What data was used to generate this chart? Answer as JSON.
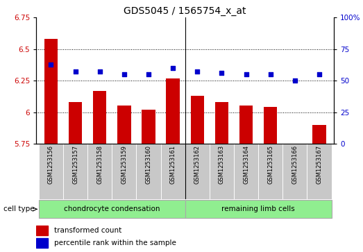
{
  "title": "GDS5045 / 1565754_x_at",
  "samples": [
    "GSM1253156",
    "GSM1253157",
    "GSM1253158",
    "GSM1253159",
    "GSM1253160",
    "GSM1253161",
    "GSM1253162",
    "GSM1253163",
    "GSM1253164",
    "GSM1253165",
    "GSM1253166",
    "GSM1253167"
  ],
  "bar_values": [
    6.58,
    6.08,
    6.17,
    6.05,
    6.02,
    6.27,
    6.13,
    6.08,
    6.05,
    6.04,
    5.75,
    5.9
  ],
  "percentile_values": [
    63,
    57,
    57,
    55,
    55,
    60,
    57,
    56,
    55,
    55,
    50,
    55
  ],
  "ylim_left": [
    5.75,
    6.75
  ],
  "ylim_right": [
    0,
    100
  ],
  "yticks_left": [
    5.75,
    6.0,
    6.25,
    6.5,
    6.75
  ],
  "yticks_right": [
    0,
    25,
    50,
    75,
    100
  ],
  "bar_color": "#cc0000",
  "dot_color": "#0000cc",
  "group_boundary": 5.5,
  "legend_bar_label": "transformed count",
  "legend_dot_label": "percentile rank within the sample",
  "xlabel_cell_type": "cell type",
  "xtick_bg_color": "#c8c8c8",
  "group1_label": "chondrocyte condensation",
  "group2_label": "remaining limb cells",
  "group_color": "#90ee90",
  "right_axis_label_color": "#0000cc",
  "left_axis_label_color": "#cc0000",
  "title_fontsize": 10,
  "tick_fontsize": 7.5,
  "label_fontsize": 8
}
